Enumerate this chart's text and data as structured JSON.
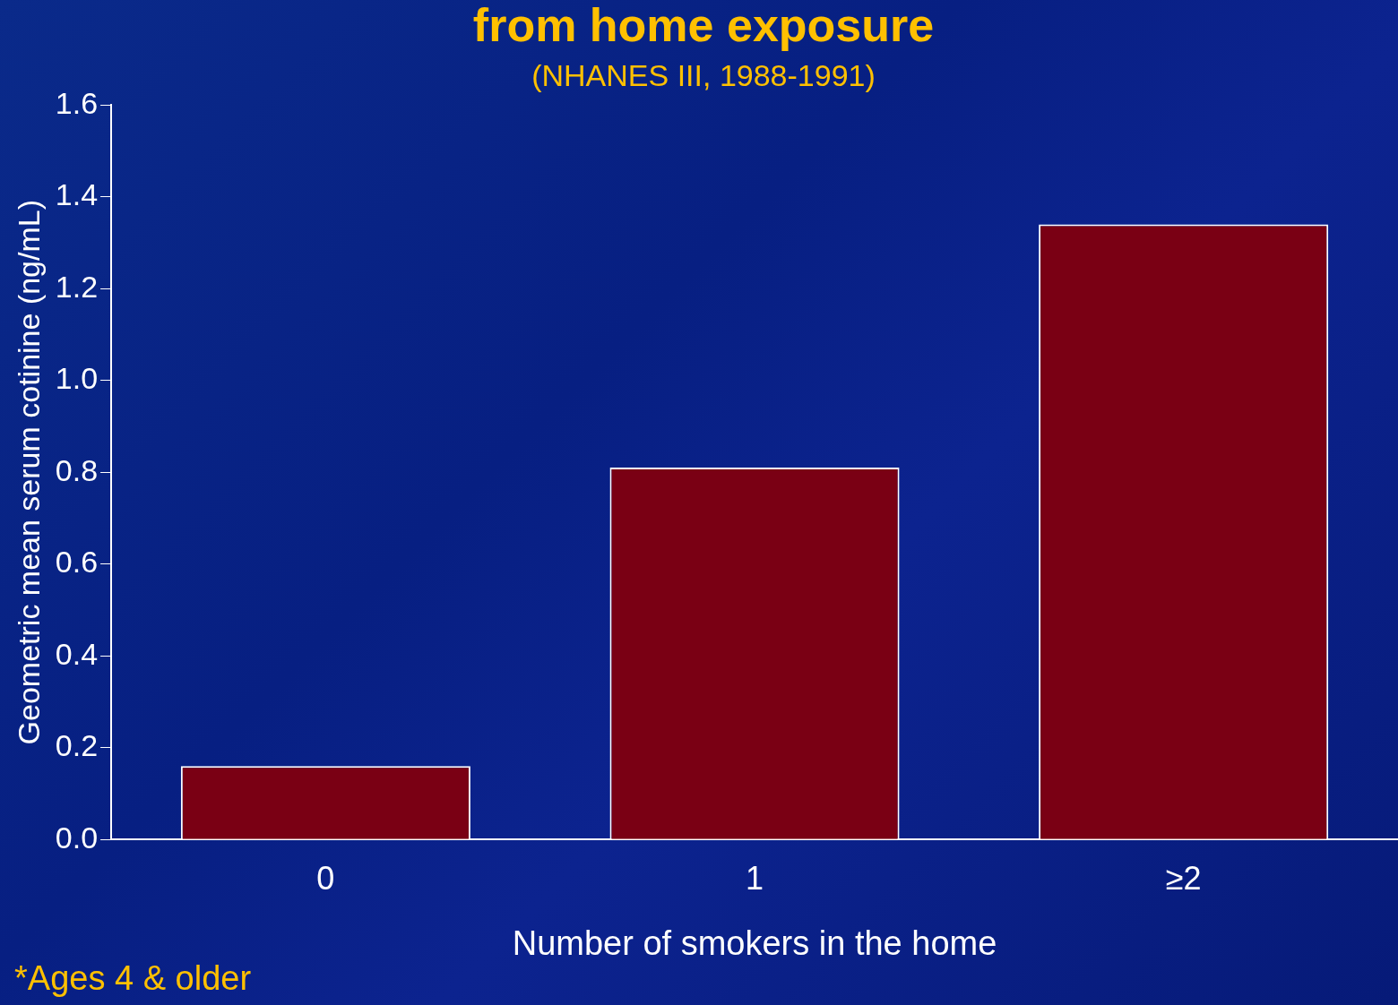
{
  "chart_data": {
    "type": "bar",
    "title": "from home exposure",
    "subtitle": "(NHANES III, 1988-1991)",
    "xlabel": "Number of smokers in the home",
    "ylabel": "Geometric mean serum cotinine (ng/mL)",
    "annotations": [
      "*Ages 4 & older"
    ],
    "categories": [
      "0",
      "1",
      "≥2"
    ],
    "values": [
      0.16,
      0.81,
      1.34
    ],
    "color": "#7a0014",
    "ylim": [
      0,
      1.6
    ],
    "yticks": [
      {
        "value": 0,
        "label": "0.0"
      },
      0.2,
      0.4,
      0.6,
      0.8,
      {
        "value": 1,
        "label": "1.0"
      },
      1.2,
      1.4,
      1.6
    ],
    "grid": false,
    "legend": false
  }
}
